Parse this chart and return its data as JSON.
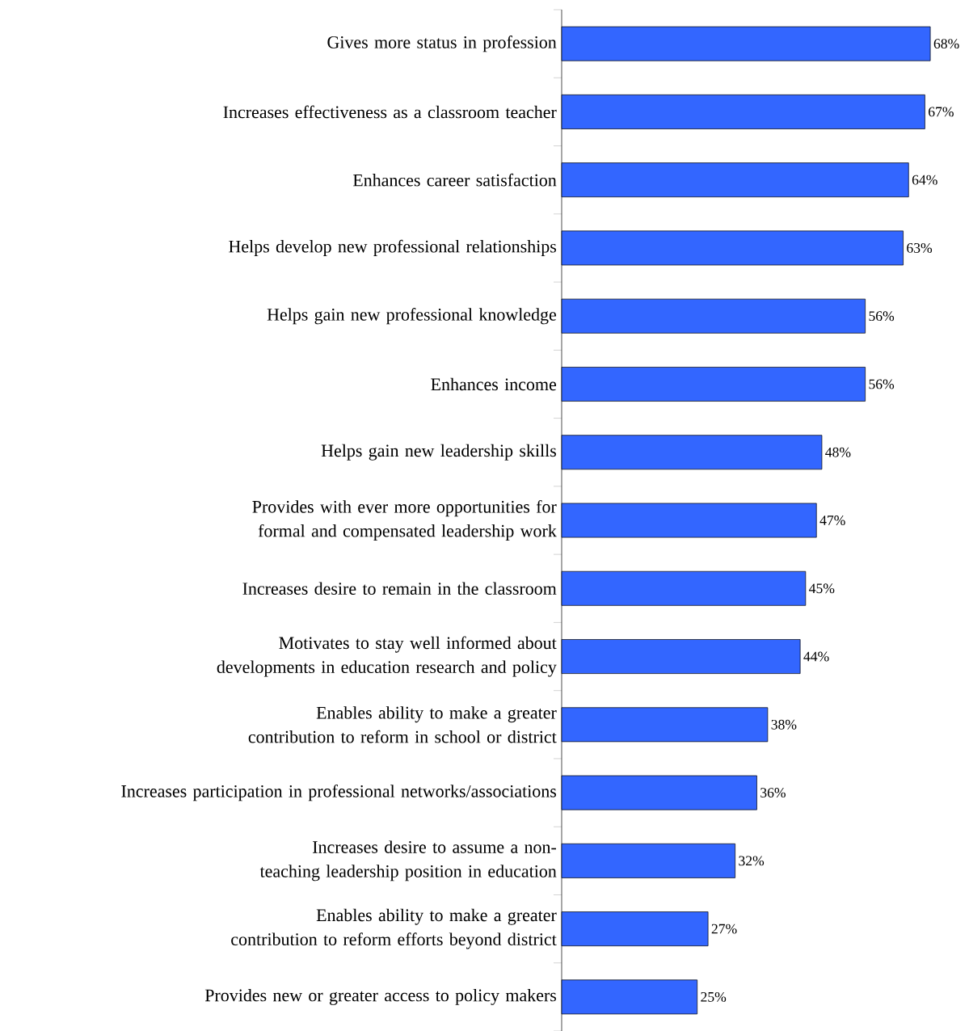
{
  "chart_data": {
    "type": "bar",
    "orientation": "horizontal",
    "color": "#3366ff",
    "categories": [
      "Gives more status in profession",
      "Increases effectiveness as a classroom teacher",
      "Enhances career satisfaction",
      "Helps develop new professional relationships",
      "Helps gain new professional knowledge",
      "Enhances income",
      "Helps gain new leadership skills",
      "Provides with ever more opportunities for formal and compensated leadership work",
      "Increases desire to remain in the classroom",
      "Motivates to stay well informed about developments in education research and policy",
      "Enables ability to make a greater contribution to reform in school or district",
      "Increases participation in professional networks/associations",
      "Increases desire to assume a non-teaching leadership position in education",
      "Enables ability to make a greater contribution to reform efforts beyond district",
      "Provides new or greater access to policy makers"
    ],
    "values": [
      68,
      67,
      64,
      63,
      56,
      56,
      48,
      47,
      45,
      44,
      38,
      36,
      32,
      27,
      25
    ],
    "value_labels": [
      "68%",
      "67%",
      "64%",
      "63%",
      "56%",
      "56%",
      "48%",
      "47%",
      "45%",
      "44%",
      "38%",
      "36%",
      "32%",
      "27%",
      "25%"
    ]
  }
}
